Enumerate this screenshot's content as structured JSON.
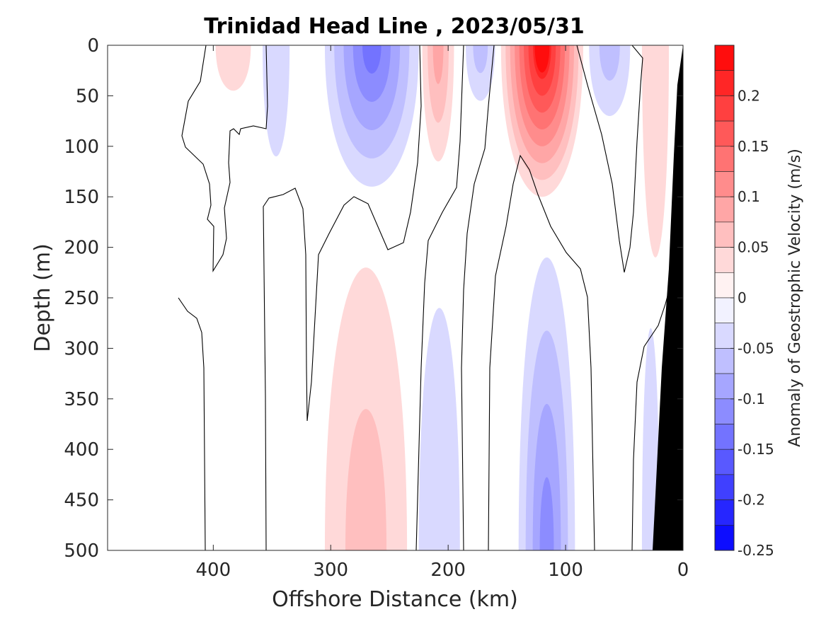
{
  "chart_data": {
    "type": "contour",
    "title": "Trinidad Head Line , 2023/05/31",
    "xlabel": "Offshore Distance (km)",
    "ylabel": "Depth (m)",
    "colorbar_label": "Anomaly of Geostrophic Velocity (m/s)",
    "xlim": [
      490,
      0
    ],
    "ylim": [
      500,
      0
    ],
    "x_reversed": true,
    "y_reversed": true,
    "x_ticks": [
      400,
      300,
      200,
      100,
      0
    ],
    "x_tick_labels": [
      "400",
      "300",
      "200",
      "100",
      "0"
    ],
    "y_ticks": [
      0,
      50,
      100,
      150,
      200,
      250,
      300,
      350,
      400,
      450,
      500
    ],
    "y_tick_labels": [
      "0",
      "50",
      "100",
      "150",
      "200",
      "250",
      "300",
      "350",
      "400",
      "450",
      "500"
    ],
    "colorbar_range": [
      -0.25,
      0.25
    ],
    "colorbar_ticks": [
      0.2,
      0.15,
      0.1,
      0.05,
      0,
      -0.05,
      -0.1,
      -0.15,
      -0.2,
      -0.25
    ],
    "colorbar_tick_labels": [
      "0.2",
      "0.15",
      "0.1",
      "0.05",
      "0",
      "-0.05",
      "-0.1",
      "-0.15",
      "-0.2",
      "-0.25"
    ],
    "colormap": "blue-white-red diverging",
    "colors": {
      "max_positive": "#ff0000",
      "max_negative": "#0000ff",
      "zero": "#ffffff",
      "bathymetry": "#000000"
    },
    "features": [
      {
        "sign": "positive",
        "peak": 0.04,
        "x": [
          398,
          368
        ],
        "depth": [
          0,
          45
        ]
      },
      {
        "sign": "negative",
        "peak": -0.04,
        "x": [
          358,
          335
        ],
        "depth": [
          0,
          110
        ]
      },
      {
        "sign": "negative",
        "peak": -0.13,
        "x": [
          305,
          225
        ],
        "depth": [
          0,
          140
        ]
      },
      {
        "sign": "positive",
        "peak": 0.1,
        "x": [
          222,
          195
        ],
        "depth": [
          0,
          115
        ]
      },
      {
        "sign": "negative",
        "peak": -0.06,
        "x": [
          185,
          160
        ],
        "depth": [
          0,
          55
        ]
      },
      {
        "sign": "positive",
        "peak": 0.23,
        "x": [
          155,
          85
        ],
        "depth": [
          0,
          150
        ]
      },
      {
        "sign": "negative",
        "peak": -0.07,
        "x": [
          80,
          45
        ],
        "depth": [
          0,
          70
        ]
      },
      {
        "sign": "positive",
        "peak": 0.04,
        "x": [
          35,
          12
        ],
        "depth": [
          0,
          210
        ]
      },
      {
        "sign": "positive",
        "peak": 0.06,
        "x": [
          305,
          235
        ],
        "depth": [
          220,
          500
        ]
      },
      {
        "sign": "negative",
        "peak": -0.05,
        "x": [
          225,
          190
        ],
        "depth": [
          260,
          500
        ]
      },
      {
        "sign": "negative",
        "peak": -0.12,
        "x": [
          140,
          92
        ],
        "depth": [
          210,
          500
        ]
      },
      {
        "sign": "negative",
        "peak": -0.05,
        "x": [
          35,
          20
        ],
        "depth": [
          280,
          500
        ]
      }
    ]
  }
}
